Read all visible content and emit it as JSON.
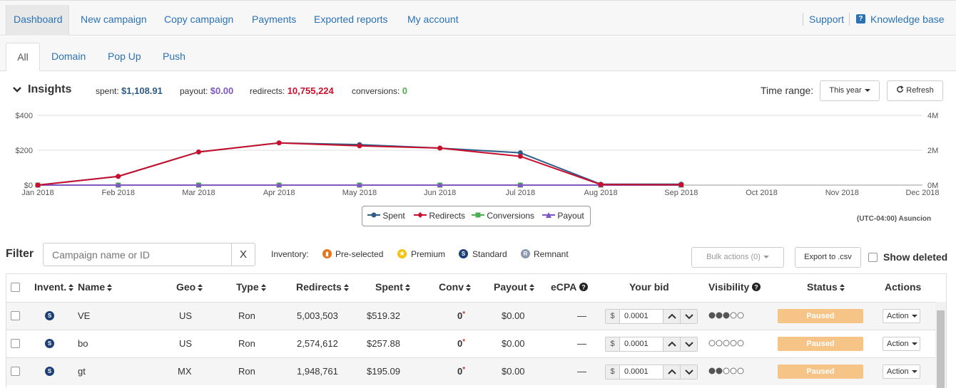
{
  "nav": {
    "tabs": [
      "Dashboard",
      "New campaign",
      "Copy campaign",
      "Payments",
      "Exported reports",
      "My account"
    ],
    "support": "Support",
    "knowledge_base": "Knowledge base"
  },
  "subtabs": [
    "All",
    "Domain",
    "Pop Up",
    "Push"
  ],
  "insights": {
    "title": "Insights",
    "spent_label": "spent:",
    "spent_value": "$1,108.91",
    "payout_label": "payout:",
    "payout_value": "$0.00",
    "redirects_label": "redirects:",
    "redirects_value": "10,755,224",
    "conversions_label": "conversions:",
    "conversions_value": "0",
    "time_range_label": "Time range:",
    "time_range_value": "This year",
    "refresh_label": "Refresh",
    "timezone": "(UTC-04:00) Asuncion"
  },
  "colors": {
    "spent": "#2e5d8a",
    "redirects": "#c8102e",
    "conversions": "#4caf50",
    "payout": "#7e57c2",
    "accent": "#2a72b5"
  },
  "chart_data": {
    "type": "line",
    "x": [
      "Jan 2018",
      "Feb 2018",
      "Mar 2018",
      "Apr 2018",
      "May 2018",
      "Jun 2018",
      "Jul 2018",
      "Aug 2018",
      "Sep 2018",
      "Oct 2018",
      "Nov 2018",
      "Dec 2018"
    ],
    "y_left_ticks": [
      "$0",
      "$200",
      "$400"
    ],
    "y_right_ticks": [
      "0M",
      "2M",
      "4M"
    ],
    "ylim_left": [
      0,
      400
    ],
    "ylim_right": [
      0,
      4000000
    ],
    "grid": true,
    "legend_position": "bottom-center",
    "series": [
      {
        "name": "Spent",
        "axis": "left",
        "values": [
          0,
          50,
          190,
          242,
          232,
          212,
          185,
          5,
          5,
          null,
          null,
          null
        ]
      },
      {
        "name": "Redirects",
        "axis": "right",
        "values": [
          0,
          500000,
          1900000,
          2420000,
          2250000,
          2120000,
          1650000,
          30000,
          20000,
          null,
          null,
          null
        ]
      },
      {
        "name": "Conversions",
        "axis": "right",
        "values": [
          0,
          0,
          0,
          0,
          0,
          0,
          0,
          0,
          0,
          null,
          null,
          null
        ]
      },
      {
        "name": "Payout",
        "axis": "left",
        "values": [
          0,
          0,
          0,
          0,
          0,
          0,
          0,
          0,
          0,
          null,
          null,
          null
        ]
      }
    ]
  },
  "filter": {
    "label": "Filter",
    "placeholder": "Campaign name or ID",
    "clear": "X",
    "inventory_label": "Inventory:",
    "inventory": [
      {
        "name": "Pre-selected",
        "color": "#e8731a",
        "glyph": "▮"
      },
      {
        "name": "Premium",
        "color": "#f4c20d",
        "glyph": "★"
      },
      {
        "name": "Standard",
        "color": "#1e3f75",
        "glyph": "S"
      },
      {
        "name": "Remnant",
        "color": "#8a99ad",
        "glyph": "R"
      }
    ],
    "bulk_actions": "Bulk actions (0)",
    "export": "Export to .csv",
    "show_deleted": "Show deleted"
  },
  "table": {
    "headers": [
      "Invent.",
      "Name",
      "Geo",
      "Type",
      "Redirects",
      "Spent",
      "Conv",
      "Payout",
      "eCPA",
      "Your bid",
      "Visibility",
      "Status",
      "Actions"
    ],
    "rows": [
      {
        "inv": "S",
        "name": "VE",
        "geo": "US",
        "type": "Ron",
        "redirects": "5,003,503",
        "spent": "$519.32",
        "conv": "0",
        "payout": "$0.00",
        "ecpa": "—",
        "bid": "0.0001",
        "visibility": 3,
        "status": "Paused",
        "action": "Action"
      },
      {
        "inv": "S",
        "name": "bo",
        "geo": "US",
        "type": "Ron",
        "redirects": "2,574,612",
        "spent": "$257.88",
        "conv": "0",
        "payout": "$0.00",
        "ecpa": "—",
        "bid": "0.0001",
        "visibility": 0,
        "status": "Paused",
        "action": "Action"
      },
      {
        "inv": "S",
        "name": "gt",
        "geo": "MX",
        "type": "Ron",
        "redirects": "1,948,761",
        "spent": "$195.09",
        "conv": "0",
        "payout": "$0.00",
        "ecpa": "—",
        "bid": "0.0001",
        "visibility": 2,
        "status": "Paused",
        "action": "Action"
      }
    ]
  }
}
